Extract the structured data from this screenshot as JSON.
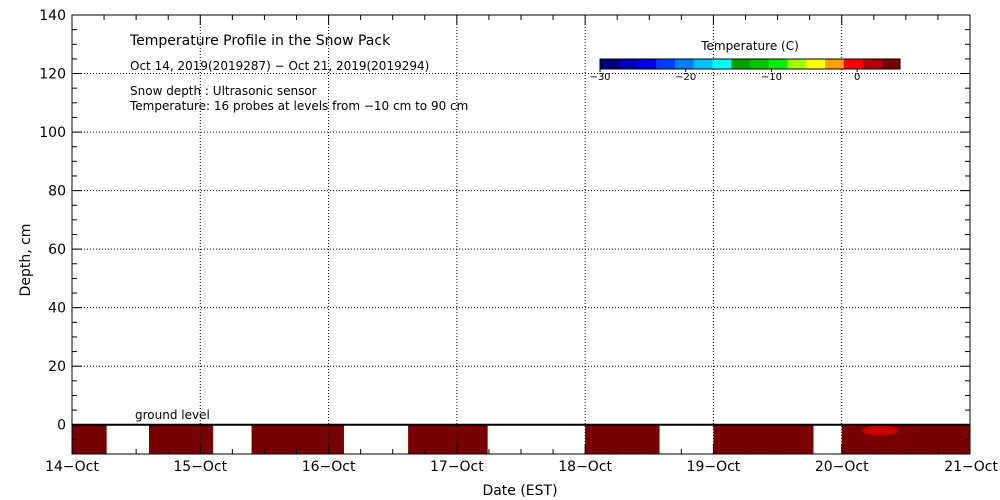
{
  "chart_data": {
    "type": "heatmap",
    "title": "Temperature Profile in the Snow Pack",
    "subtitle": "Oct 14, 2019(2019287) − Oct 21, 2019(2019294)",
    "notes": [
      "Snow depth : Ultrasonic sensor",
      "Temperature: 16 probes at levels from −10 cm to 90 cm"
    ],
    "xlabel": "Date (EST)",
    "ylabel": "Depth, cm",
    "x_ticks": [
      "14−Oct",
      "15−Oct",
      "16−Oct",
      "17−Oct",
      "18−Oct",
      "19−Oct",
      "20−Oct",
      "21−Oct"
    ],
    "ylim": [
      -10,
      140
    ],
    "y_ticks": [
      0,
      20,
      40,
      60,
      80,
      100,
      120,
      140
    ],
    "grid": true,
    "ground_level_label": "ground level",
    "colorbar": {
      "title": "Temperature (C)",
      "range": [
        -30,
        5
      ],
      "ticks": [
        "−30",
        "−20",
        "−10",
        "0"
      ],
      "tick_values": [
        -30,
        -20,
        -10,
        0
      ],
      "colors": [
        "#00007a",
        "#0000b4",
        "#0000e6",
        "#0040ff",
        "#0080ff",
        "#00c0ff",
        "#00ffff",
        "#00a000",
        "#00c800",
        "#00f000",
        "#a0ff00",
        "#ffff00",
        "#ffa000",
        "#ff0000",
        "#b40000",
        "#780000"
      ]
    },
    "ground_temperature_blocks": [
      {
        "start_day": 0.0,
        "end_day": 0.27,
        "color": "#780000"
      },
      {
        "start_day": 0.6,
        "end_day": 1.1,
        "color": "#780000"
      },
      {
        "start_day": 1.4,
        "end_day": 2.12,
        "color": "#780000"
      },
      {
        "start_day": 2.62,
        "end_day": 3.24,
        "color": "#780000"
      },
      {
        "start_day": 4.0,
        "end_day": 4.58,
        "color": "#780000"
      },
      {
        "start_day": 5.0,
        "end_day": 5.78,
        "color": "#780000"
      },
      {
        "start_day": 6.0,
        "end_day": 7.0,
        "color": "#780000"
      }
    ],
    "x_range_days": [
      0,
      7
    ]
  }
}
